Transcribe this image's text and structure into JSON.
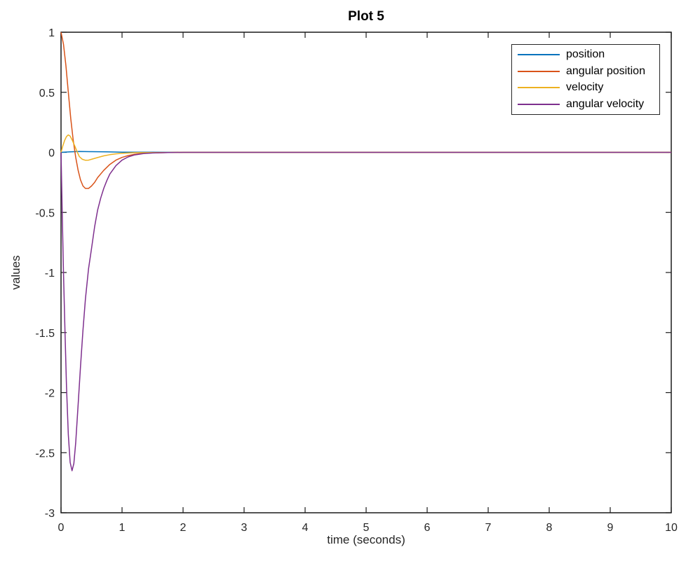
{
  "chart_data": {
    "type": "line",
    "title": "Plot 5",
    "xlabel": "time (seconds)",
    "ylabel": "values",
    "xlim": [
      0,
      10
    ],
    "ylim": [
      -3,
      1
    ],
    "xticks": [
      0,
      1,
      2,
      3,
      4,
      5,
      6,
      7,
      8,
      9,
      10
    ],
    "yticks": [
      -3,
      -2.5,
      -2,
      -1.5,
      -1,
      -0.5,
      0,
      0.5,
      1
    ],
    "grid": false,
    "box": true,
    "legend_position": "top-right-inside",
    "axis_color": "#1a1a1a",
    "background_color": "#ffffff",
    "series": [
      {
        "name": "position",
        "color": "#0072BD",
        "points": [
          [
            0,
            0
          ],
          [
            0.15,
            0.004
          ],
          [
            0.3,
            0.007
          ],
          [
            0.5,
            0.006
          ],
          [
            0.75,
            0.004
          ],
          [
            1,
            0.002
          ],
          [
            1.5,
            0.001
          ],
          [
            2,
            0
          ],
          [
            3,
            0
          ],
          [
            4,
            0
          ],
          [
            5,
            0
          ],
          [
            6,
            0
          ],
          [
            7,
            0
          ],
          [
            8,
            0
          ],
          [
            9,
            0
          ],
          [
            10,
            0
          ]
        ]
      },
      {
        "name": "angular position",
        "color": "#D95319",
        "points": [
          [
            0,
            1
          ],
          [
            0.04,
            0.9
          ],
          [
            0.08,
            0.72
          ],
          [
            0.12,
            0.5
          ],
          [
            0.16,
            0.28
          ],
          [
            0.2,
            0.1
          ],
          [
            0.24,
            -0.04
          ],
          [
            0.28,
            -0.15
          ],
          [
            0.32,
            -0.23
          ],
          [
            0.36,
            -0.28
          ],
          [
            0.4,
            -0.3
          ],
          [
            0.45,
            -0.3
          ],
          [
            0.5,
            -0.28
          ],
          [
            0.55,
            -0.25
          ],
          [
            0.6,
            -0.21
          ],
          [
            0.7,
            -0.15
          ],
          [
            0.8,
            -0.1
          ],
          [
            0.9,
            -0.065
          ],
          [
            1,
            -0.042
          ],
          [
            1.1,
            -0.027
          ],
          [
            1.2,
            -0.017
          ],
          [
            1.35,
            -0.008
          ],
          [
            1.5,
            -0.004
          ],
          [
            1.75,
            -0.001
          ],
          [
            2,
            0
          ],
          [
            3,
            0
          ],
          [
            4,
            0
          ],
          [
            5,
            0
          ],
          [
            6,
            0
          ],
          [
            7,
            0
          ],
          [
            8,
            0
          ],
          [
            9,
            0
          ],
          [
            10,
            0
          ]
        ]
      },
      {
        "name": "velocity",
        "color": "#EDB120",
        "points": [
          [
            0,
            0
          ],
          [
            0.03,
            0.055
          ],
          [
            0.06,
            0.1
          ],
          [
            0.09,
            0.132
          ],
          [
            0.12,
            0.145
          ],
          [
            0.15,
            0.135
          ],
          [
            0.18,
            0.105
          ],
          [
            0.22,
            0.06
          ],
          [
            0.26,
            0.01
          ],
          [
            0.3,
            -0.035
          ],
          [
            0.35,
            -0.058
          ],
          [
            0.4,
            -0.066
          ],
          [
            0.45,
            -0.065
          ],
          [
            0.5,
            -0.058
          ],
          [
            0.6,
            -0.043
          ],
          [
            0.7,
            -0.029
          ],
          [
            0.8,
            -0.019
          ],
          [
            0.9,
            -0.012
          ],
          [
            1,
            -0.008
          ],
          [
            1.2,
            -0.003
          ],
          [
            1.5,
            -0.001
          ],
          [
            2,
            0
          ],
          [
            3,
            0
          ],
          [
            4,
            0
          ],
          [
            5,
            0
          ],
          [
            6,
            0
          ],
          [
            7,
            0
          ],
          [
            8,
            0
          ],
          [
            9,
            0
          ],
          [
            10,
            0
          ]
        ]
      },
      {
        "name": "angular velocity",
        "color": "#7E2F8E",
        "points": [
          [
            0,
            0
          ],
          [
            0.02,
            -0.5
          ],
          [
            0.04,
            -1
          ],
          [
            0.065,
            -1.5
          ],
          [
            0.09,
            -1.95
          ],
          [
            0.12,
            -2.35
          ],
          [
            0.15,
            -2.58
          ],
          [
            0.18,
            -2.65
          ],
          [
            0.21,
            -2.59
          ],
          [
            0.24,
            -2.42
          ],
          [
            0.28,
            -2.1
          ],
          [
            0.32,
            -1.78
          ],
          [
            0.36,
            -1.48
          ],
          [
            0.4,
            -1.22
          ],
          [
            0.45,
            -0.97
          ],
          [
            0.5,
            -0.8
          ],
          [
            0.55,
            -0.62
          ],
          [
            0.6,
            -0.48
          ],
          [
            0.65,
            -0.38
          ],
          [
            0.7,
            -0.3
          ],
          [
            0.75,
            -0.235
          ],
          [
            0.8,
            -0.18
          ],
          [
            0.9,
            -0.11
          ],
          [
            1,
            -0.065
          ],
          [
            1.1,
            -0.038
          ],
          [
            1.2,
            -0.022
          ],
          [
            1.35,
            -0.01
          ],
          [
            1.5,
            -0.005
          ],
          [
            1.75,
            -0.001
          ],
          [
            2,
            0
          ],
          [
            3,
            0
          ],
          [
            4,
            0
          ],
          [
            5,
            0
          ],
          [
            6,
            0
          ],
          [
            7,
            0
          ],
          [
            8,
            0
          ],
          [
            9,
            0
          ],
          [
            10,
            0
          ]
        ]
      }
    ]
  }
}
